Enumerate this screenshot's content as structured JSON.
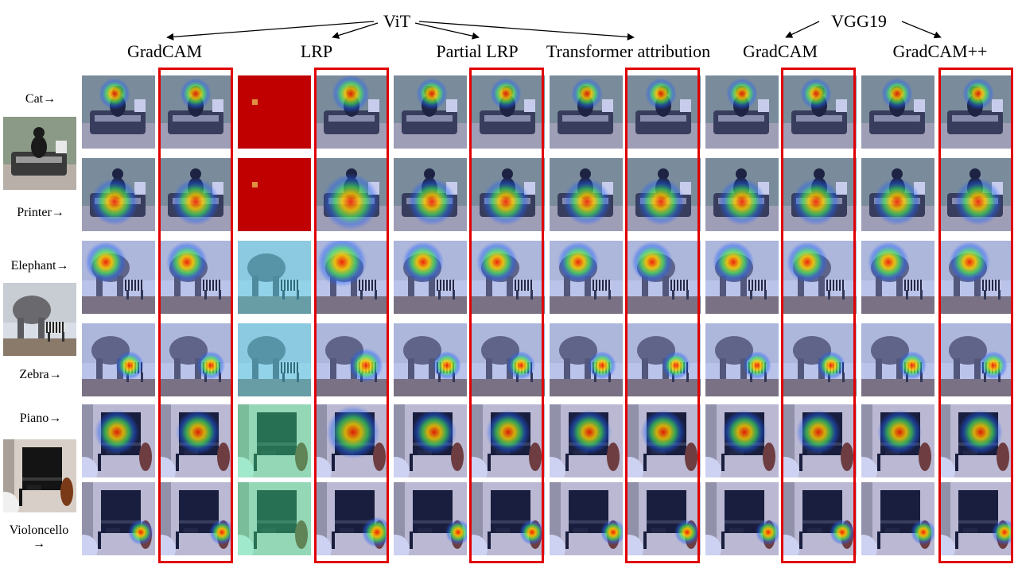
{
  "header": {
    "models": [
      {
        "name": "ViT"
      },
      {
        "name": "VGG19"
      }
    ],
    "methods": [
      {
        "name": "GradCAM"
      },
      {
        "name": "LRP"
      },
      {
        "name": "Partial LRP"
      },
      {
        "name": "Transformer attribution"
      },
      {
        "name": "GradCAM"
      },
      {
        "name": "GradCAM++"
      }
    ]
  },
  "rows": [
    {
      "label": "Cat→",
      "scene": "cat",
      "heat": "cat"
    },
    {
      "label": "Printer→",
      "scene": "cat",
      "heat": "printer"
    },
    {
      "label": "Elephant→",
      "scene": "elephant",
      "heat": "elephant"
    },
    {
      "label": "Zebra→",
      "scene": "elephant",
      "heat": "zebra"
    },
    {
      "label": "Piano→",
      "scene": "piano",
      "heat": "piano"
    },
    {
      "label": "Violoncello\n→",
      "scene": "piano",
      "heat": "cello"
    }
  ],
  "colors": {
    "highlight_frame": "#e00000",
    "heat_low": "#2040ff",
    "heat_mid": "#30e060",
    "heat_high": "#ff2000"
  }
}
